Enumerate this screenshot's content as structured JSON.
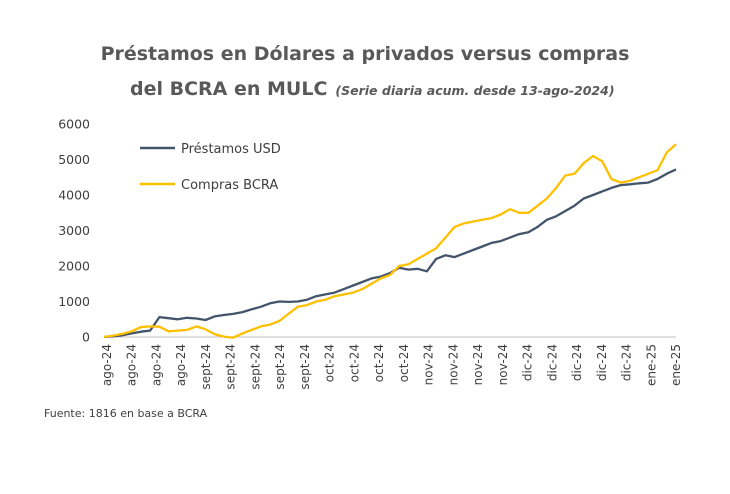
{
  "source": "Fuente: 1816 en base a BCRA",
  "chart_data": {
    "type": "line",
    "title_line1": "Préstamos en Dólares a privados versus compras",
    "title_line2": "del BCRA en MULC",
    "subtitle": "(Serie diaria acum. desde 13-ago-2024)",
    "ylim": [
      0,
      6000
    ],
    "y_ticks": [
      "0",
      "1000",
      "2000",
      "3000",
      "4000",
      "5000",
      "6000"
    ],
    "x_tick_labels": [
      "ago-24",
      "ago-24",
      "ago-24",
      "ago-24",
      "sept-24",
      "sept-24",
      "sept-24",
      "sept-24",
      "sept-24",
      "oct-24",
      "oct-24",
      "oct-24",
      "oct-24",
      "nov-24",
      "nov-24",
      "nov-24",
      "nov-24",
      "dic-24",
      "dic-24",
      "dic-24",
      "dic-24",
      "dic-24",
      "ene-25",
      "ene-25"
    ],
    "grid": false,
    "legend_position": "top-left",
    "series": [
      {
        "name": "Préstamos USD",
        "color": "#44546A",
        "values": [
          0,
          20,
          50,
          100,
          150,
          180,
          560,
          530,
          500,
          540,
          520,
          480,
          580,
          620,
          650,
          700,
          780,
          850,
          950,
          1000,
          990,
          1000,
          1050,
          1150,
          1200,
          1250,
          1350,
          1450,
          1550,
          1650,
          1700,
          1800,
          1950,
          1900,
          1920,
          1850,
          2200,
          2300,
          2250,
          2350,
          2450,
          2550,
          2650,
          2700,
          2800,
          2900,
          2950,
          3100,
          3300,
          3400,
          3550,
          3700,
          3900,
          4000,
          4100,
          4200,
          4280,
          4300,
          4330,
          4350,
          4450,
          4600,
          4720
        ]
      },
      {
        "name": "Compras BCRA",
        "color": "#FFC000",
        "values": [
          0,
          40,
          90,
          160,
          280,
          300,
          290,
          160,
          180,
          200,
          300,
          220,
          80,
          10,
          -20,
          100,
          200,
          300,
          350,
          450,
          650,
          850,
          900,
          1000,
          1050,
          1150,
          1200,
          1250,
          1350,
          1500,
          1650,
          1750,
          2000,
          2050,
          2200,
          2350,
          2500,
          2800,
          3100,
          3200,
          3250,
          3300,
          3350,
          3450,
          3600,
          3500,
          3500,
          3700,
          3900,
          4200,
          4550,
          4600,
          4900,
          5100,
          4950,
          4450,
          4350,
          4400,
          4500,
          4600,
          4700,
          5200,
          5430
        ]
      }
    ]
  }
}
